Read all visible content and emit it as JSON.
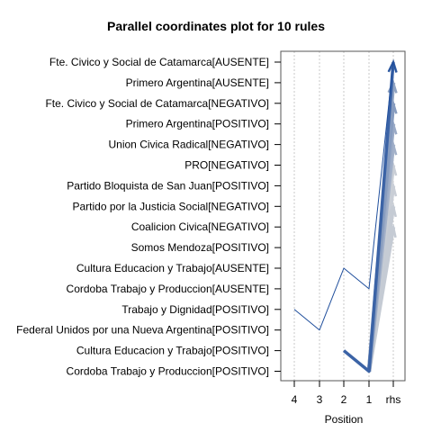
{
  "chart_data": {
    "type": "parallel_coordinates",
    "title": "Parallel coordinates plot for 10 rules",
    "xlabel": "Position",
    "x_ticks": [
      "4",
      "3",
      "2",
      "1",
      "rhs"
    ],
    "items": [
      "Fte. Civico y Social de Catamarca[AUSENTE]",
      "Primero Argentina[AUSENTE]",
      "Fte. Civico y Social de Catamarca[NEGATIVO]",
      "Primero Argentina[POSITIVO]",
      "Union Civica Radical[NEGATIVO]",
      "PRO[NEGATIVO]",
      "Partido Bloquista de San Juan[POSITIVO]",
      "Partido por la Justicia Social[NEGATIVO]",
      "Coalicion Civica[NEGATIVO]",
      "Somos Mendoza[POSITIVO]",
      "Cultura Educacion y Trabajo[AUSENTE]",
      "Cordoba Trabajo y Produccion[AUSENTE]",
      "Trabajo y Dignidad[POSITIVO]",
      "Federal Unidos por una Nueva Argentina[POSITIVO]",
      "Cultura Educacion y Trabajo[POSITIVO]",
      "Cordoba Trabajo y Produccion[POSITIVO]"
    ],
    "rules": [
      {
        "path": [
          null,
          null,
          "Cultura Educacion y Trabajo[POSITIVO]",
          "Cordoba Trabajo y Produccion[POSITIVO]",
          "Fte. Civico y Social de Catamarca[AUSENTE]"
        ],
        "shade": 0.85
      },
      {
        "path": [
          null,
          null,
          null,
          "Cordoba Trabajo y Produccion[POSITIVO]",
          "Primero Argentina[AUSENTE]"
        ],
        "shade": 0.4
      },
      {
        "path": [
          null,
          null,
          null,
          "Cordoba Trabajo y Produccion[POSITIVO]",
          "Fte. Civico y Social de Catamarca[NEGATIVO]"
        ],
        "shade": 0.45
      },
      {
        "path": [
          null,
          null,
          null,
          "Cordoba Trabajo y Produccion[POSITIVO]",
          "Primero Argentina[POSITIVO]"
        ],
        "shade": 0.35
      },
      {
        "path": [
          null,
          null,
          null,
          "Cordoba Trabajo y Produccion[POSITIVO]",
          "Union Civica Radical[NEGATIVO]"
        ],
        "shade": 0.3
      },
      {
        "path": [
          null,
          null,
          null,
          "Cordoba Trabajo y Produccion[POSITIVO]",
          "PRO[NEGATIVO]"
        ],
        "shade": 0.1
      },
      {
        "path": [
          null,
          null,
          null,
          "Cordoba Trabajo y Produccion[POSITIVO]",
          "Partido Bloquista de San Juan[POSITIVO]"
        ],
        "shade": 0.1
      },
      {
        "path": [
          null,
          null,
          null,
          "Cordoba Trabajo y Produccion[POSITIVO]",
          "Partido por la Justicia Social[NEGATIVO]"
        ],
        "shade": 0.12
      },
      {
        "path": [
          null,
          null,
          null,
          "Cordoba Trabajo y Produccion[POSITIVO]",
          "Coalicion Civica[NEGATIVO]"
        ],
        "shade": 0.12
      },
      {
        "path": [
          "Trabajo y Dignidad[POSITIVO]",
          "Federal Unidos por una Nueva Argentina[POSITIVO]",
          "Cultura Educacion y Trabajo[AUSENTE]",
          "Cordoba Trabajo y Produccion[AUSENTE]",
          "Fte. Civico y Social de Catamarca[AUSENTE]"
        ],
        "shade": 1.0
      }
    ],
    "colors": {
      "strong": "#1f4e9c",
      "weak": "#dcdcdc",
      "axis": "#555555",
      "grid": "#bbbbbb"
    }
  }
}
